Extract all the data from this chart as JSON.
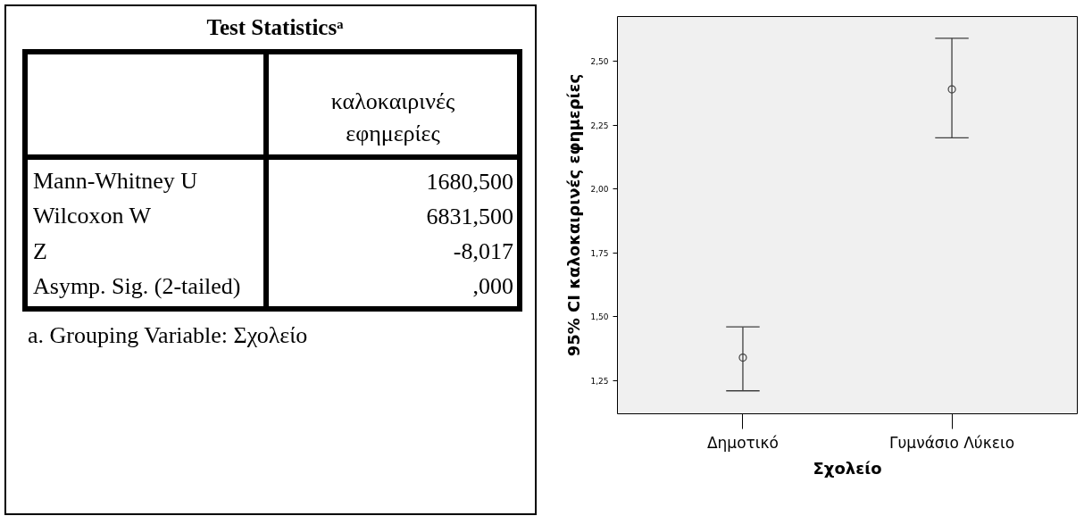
{
  "chart_data": [
    {
      "type": "other",
      "title": "Test Statisticsᵃ",
      "annotations": [
        "καλοκαιρινές εφημερίες",
        "Mann-Whitney U",
        "1680,500",
        "Wilcoxon W",
        "6831,500",
        "Z",
        "-8,017",
        "Asymp. Sig. (2-tailed)",
        ",000",
        "a. Grouping Variable: Σχολείο"
      ]
    },
    {
      "type": "scatter",
      "xlabel": "Σχολείο",
      "ylabel": "95% CI καλοκαιρινές εφημερίες",
      "categories": [
        "Δημοτικό",
        "Γυμνάσιο Λύκειο"
      ],
      "series": [
        {
          "color": "#404040",
          "values": [
            1.34,
            2.39
          ],
          "errors": [
            [
              1.21,
              1.46
            ],
            [
              2.2,
              2.59
            ]
          ]
        }
      ],
      "marker": "circle",
      "grid": false,
      "ylim": [
        1.12,
        2.675
      ],
      "yticks": [
        {
          "value": 1.25,
          "label": "1,25"
        },
        {
          "value": 1.5,
          "label": "1,50"
        },
        {
          "value": 1.75,
          "label": "1,75"
        },
        {
          "value": 2.0,
          "label": "2,00"
        },
        {
          "value": 2.25,
          "label": "2,25"
        },
        {
          "value": 2.5,
          "label": "2,50"
        }
      ]
    }
  ]
}
